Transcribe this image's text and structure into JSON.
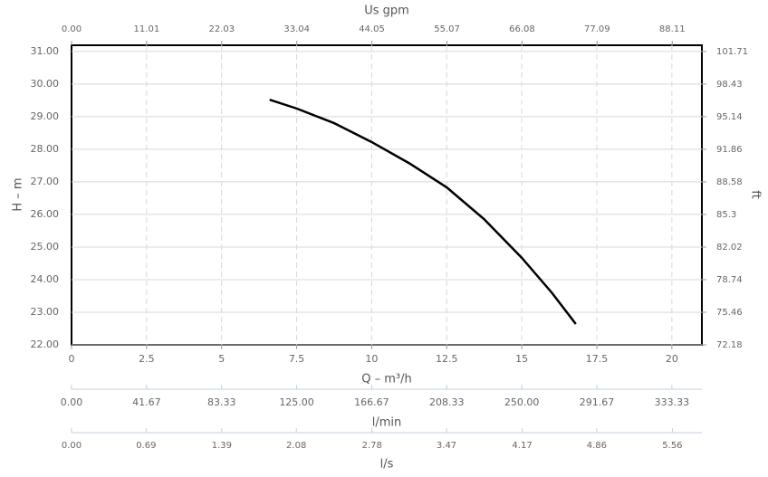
{
  "chart_data": {
    "type": "line",
    "x_label": "Q – m³/h",
    "y_label": "H – m",
    "y2_label": "ft",
    "x": [
      6.6,
      7.5,
      8.75,
      10,
      11.25,
      12.5,
      13.75,
      15,
      16,
      16.8
    ],
    "series": [
      {
        "name": "H",
        "color": "#000000",
        "values": [
          29.52,
          29.25,
          28.8,
          28.22,
          27.57,
          26.83,
          25.85,
          24.67,
          23.6,
          22.64
        ]
      }
    ],
    "xlim": [
      0,
      21
    ],
    "xticks": [
      0,
      2.5,
      5,
      7.5,
      10,
      12.5,
      15,
      17.5,
      20
    ],
    "ylim": [
      22,
      31.19
    ],
    "yticks": [
      {
        "value": 22,
        "label": "22.00"
      },
      {
        "value": 23,
        "label": "23.00"
      },
      {
        "value": 24,
        "label": "24.00"
      },
      {
        "value": 25,
        "label": "25.00"
      },
      {
        "value": 26,
        "label": "26.00"
      },
      {
        "value": 27,
        "label": "27.00"
      },
      {
        "value": 28,
        "label": "28.00"
      },
      {
        "value": 29,
        "label": "29.00"
      },
      {
        "value": 30,
        "label": "30.00"
      },
      {
        "value": 31,
        "label": "31.00"
      }
    ],
    "y2lim": [
      72.18,
      102.33
    ],
    "y2ticks": [
      72.18,
      75.46,
      78.74,
      82.02,
      85.3,
      88.58,
      91.86,
      95.14,
      98.43,
      101.71
    ],
    "grid": true,
    "top_axis": {
      "label": "Us gpm",
      "lim": [
        0,
        92.46
      ],
      "ticks": [
        {
          "value": 0,
          "label": "0.00"
        },
        11.01,
        22.03,
        33.04,
        44.05,
        55.07,
        66.08,
        77.09,
        88.11
      ]
    },
    "bottom_axes": [
      {
        "label": "l/min",
        "lim": [
          0,
          350
        ],
        "ticks": [
          {
            "value": 0,
            "label": "0.00"
          },
          41.67,
          83.33,
          {
            "value": 125,
            "label": "125.00"
          },
          166.67,
          208.33,
          {
            "value": 250,
            "label": "250.00"
          },
          291.67,
          333.33
        ]
      },
      {
        "label": "l/s",
        "lim": [
          0,
          5.833
        ],
        "ticks": [
          {
            "value": 0,
            "label": "0.00"
          },
          0.69,
          1.39,
          2.08,
          2.78,
          3.47,
          4.17,
          4.86,
          5.56
        ]
      }
    ]
  }
}
